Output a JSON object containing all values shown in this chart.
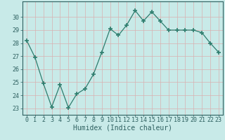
{
  "x": [
    0,
    1,
    2,
    3,
    4,
    5,
    6,
    7,
    8,
    9,
    10,
    11,
    12,
    13,
    14,
    15,
    16,
    17,
    18,
    19,
    20,
    21,
    22,
    23
  ],
  "y": [
    28.2,
    26.9,
    24.9,
    23.1,
    24.8,
    23.05,
    24.1,
    24.5,
    25.6,
    27.3,
    29.1,
    28.6,
    29.4,
    30.5,
    29.7,
    30.4,
    29.7,
    29.0,
    29.0,
    29.0,
    29.0,
    28.8,
    28.0,
    27.3
  ],
  "line_color": "#2e7d6e",
  "marker": "+",
  "marker_size": 4,
  "marker_lw": 1.2,
  "bg_color": "#c8eae8",
  "grid_color": "#b0d4d0",
  "xlabel": "Humidex (Indice chaleur)",
  "xlabel_fontsize": 7,
  "tick_fontsize": 6,
  "ylim": [
    22.5,
    31.2
  ],
  "xlim": [
    -0.5,
    23.5
  ],
  "yticks": [
    23,
    24,
    25,
    26,
    27,
    28,
    29,
    30
  ],
  "xticks": [
    0,
    1,
    2,
    3,
    4,
    5,
    6,
    7,
    8,
    9,
    10,
    11,
    12,
    13,
    14,
    15,
    16,
    17,
    18,
    19,
    20,
    21,
    22,
    23
  ]
}
